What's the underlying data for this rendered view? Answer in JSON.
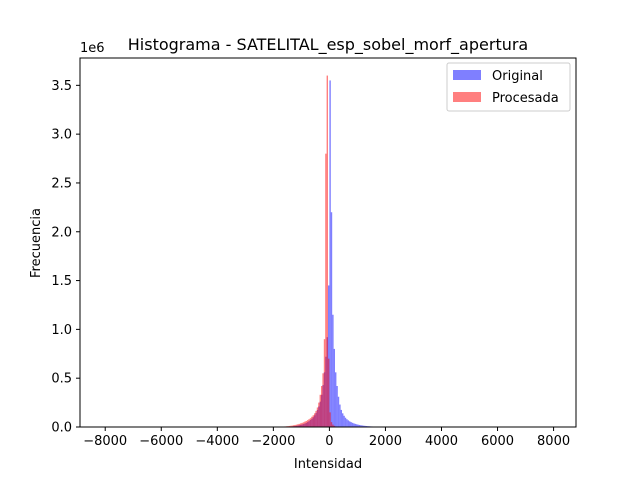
{
  "chart_data": {
    "type": "bar",
    "title": "Histograma - SATELITAL_esp_sobel_morf_apertura",
    "xlabel": "Intensidad",
    "ylabel": "Frecuencia",
    "y_scale_label": "1e6",
    "xlim": [
      -8900,
      8800
    ],
    "ylim": [
      0,
      3780000
    ],
    "x_ticks": [
      -8000,
      -6000,
      -4000,
      -2000,
      0,
      2000,
      4000,
      6000,
      8000
    ],
    "x_tick_labels": [
      "−8000",
      "−6000",
      "−4000",
      "−2000",
      "0",
      "2000",
      "4000",
      "6000",
      "8000"
    ],
    "y_ticks": [
      0,
      500000,
      1000000,
      1500000,
      2000000,
      2500000,
      3000000,
      3500000
    ],
    "y_tick_labels": [
      "0.0",
      "0.5",
      "1.0",
      "1.5",
      "2.0",
      "2.5",
      "3.0",
      "3.5"
    ],
    "grid": false,
    "legend_position": "top-right",
    "bin_width": 50,
    "series": [
      {
        "name": "Original",
        "color": "#0000ff",
        "alpha": 0.5,
        "bins": [
          [
            -1650,
            1000
          ],
          [
            -1600,
            1500
          ],
          [
            -1550,
            2000
          ],
          [
            -1500,
            3000
          ],
          [
            -1450,
            4000
          ],
          [
            -1400,
            5000
          ],
          [
            -1350,
            6000
          ],
          [
            -1300,
            8000
          ],
          [
            -1250,
            10000
          ],
          [
            -1200,
            12000
          ],
          [
            -1150,
            15000
          ],
          [
            -1100,
            18000
          ],
          [
            -1050,
            22000
          ],
          [
            -1000,
            26000
          ],
          [
            -950,
            30000
          ],
          [
            -900,
            35000
          ],
          [
            -850,
            42000
          ],
          [
            -800,
            50000
          ],
          [
            -750,
            60000
          ],
          [
            -700,
            72000
          ],
          [
            -650,
            85000
          ],
          [
            -600,
            100000
          ],
          [
            -550,
            120000
          ],
          [
            -500,
            145000
          ],
          [
            -450,
            175000
          ],
          [
            -400,
            210000
          ],
          [
            -350,
            260000
          ],
          [
            -300,
            330000
          ],
          [
            -250,
            430000
          ],
          [
            -200,
            560000
          ],
          [
            -150,
            720000
          ],
          [
            -100,
            920000
          ],
          [
            -50,
            1450000
          ],
          [
            0,
            3550000
          ],
          [
            50,
            2200000
          ],
          [
            100,
            1150000
          ],
          [
            150,
            800000
          ],
          [
            200,
            560000
          ],
          [
            250,
            420000
          ],
          [
            300,
            310000
          ],
          [
            350,
            230000
          ],
          [
            400,
            175000
          ],
          [
            450,
            140000
          ],
          [
            500,
            115000
          ],
          [
            550,
            95000
          ],
          [
            600,
            80000
          ],
          [
            650,
            68000
          ],
          [
            700,
            58000
          ],
          [
            750,
            50000
          ],
          [
            800,
            43000
          ],
          [
            850,
            37000
          ],
          [
            900,
            32000
          ],
          [
            950,
            28000
          ],
          [
            1000,
            24000
          ],
          [
            1050,
            21000
          ],
          [
            1100,
            18000
          ],
          [
            1150,
            15500
          ],
          [
            1200,
            13500
          ],
          [
            1250,
            11500
          ],
          [
            1300,
            10000
          ],
          [
            1350,
            8500
          ],
          [
            1400,
            7500
          ],
          [
            1450,
            6500
          ],
          [
            1500,
            5500
          ],
          [
            1550,
            4800
          ],
          [
            1600,
            4000
          ],
          [
            1650,
            3500
          ],
          [
            1700,
            3000
          ],
          [
            1750,
            2500
          ],
          [
            1800,
            2000
          ],
          [
            1850,
            1700
          ],
          [
            1900,
            1400
          ],
          [
            1950,
            1200
          ],
          [
            2000,
            1000
          ],
          [
            2050,
            800
          ],
          [
            2100,
            600
          ]
        ]
      },
      {
        "name": "Procesada",
        "color": "#ff0000",
        "alpha": 0.5,
        "bins": [
          [
            -1900,
            1000
          ],
          [
            -1850,
            1500
          ],
          [
            -1800,
            2000
          ],
          [
            -1750,
            3000
          ],
          [
            -1700,
            4000
          ],
          [
            -1650,
            5000
          ],
          [
            -1600,
            6000
          ],
          [
            -1550,
            7500
          ],
          [
            -1500,
            9000
          ],
          [
            -1450,
            11000
          ],
          [
            -1400,
            13000
          ],
          [
            -1350,
            15000
          ],
          [
            -1300,
            18000
          ],
          [
            -1250,
            21000
          ],
          [
            -1200,
            24000
          ],
          [
            -1150,
            28000
          ],
          [
            -1100,
            32000
          ],
          [
            -1050,
            37000
          ],
          [
            -1000,
            42000
          ],
          [
            -950,
            48000
          ],
          [
            -900,
            55000
          ],
          [
            -850,
            62000
          ],
          [
            -800,
            70000
          ],
          [
            -750,
            80000
          ],
          [
            -700,
            90000
          ],
          [
            -650,
            105000
          ],
          [
            -600,
            120000
          ],
          [
            -550,
            140000
          ],
          [
            -500,
            165000
          ],
          [
            -450,
            200000
          ],
          [
            -400,
            250000
          ],
          [
            -350,
            330000
          ],
          [
            -300,
            420000
          ],
          [
            -250,
            550000
          ],
          [
            -200,
            900000
          ],
          [
            -150,
            2800000
          ],
          [
            -100,
            3600000
          ],
          [
            -50,
            700000
          ],
          [
            0,
            150000
          ],
          [
            50,
            50000
          ],
          [
            100,
            25000
          ],
          [
            150,
            12000
          ],
          [
            200,
            6000
          ],
          [
            250,
            3000
          ],
          [
            300,
            1500
          ]
        ]
      }
    ]
  }
}
